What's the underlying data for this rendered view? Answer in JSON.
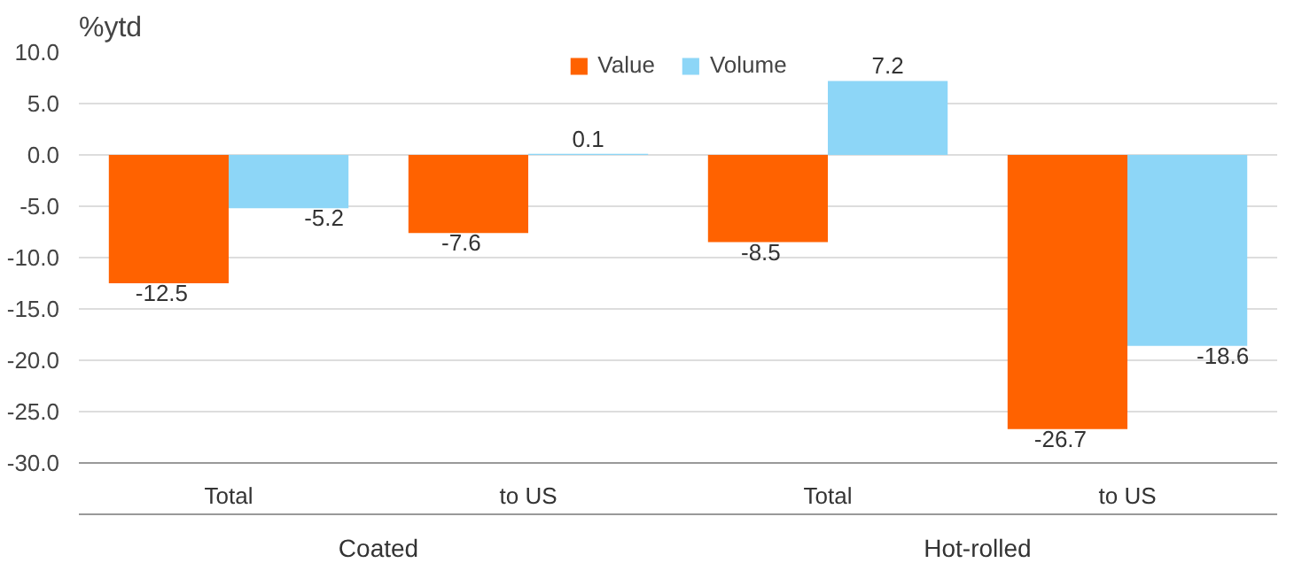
{
  "chart_data": {
    "type": "bar",
    "ylabel": "%ytd",
    "categories": [
      "Total",
      "to US",
      "Total",
      "to US"
    ],
    "annotations": [
      "Coated",
      "Hot-rolled"
    ],
    "series": [
      {
        "name": "Value",
        "color": "#ff6200",
        "values": [
          -12.5,
          -7.6,
          -8.5,
          -26.7
        ]
      },
      {
        "name": "Volume",
        "color": "#8dd6f7",
        "values": [
          -5.2,
          0.1,
          7.2,
          -18.6
        ]
      }
    ],
    "ylim": [
      -30,
      10
    ],
    "yticks": [
      {
        "value": 10,
        "label": "10.0"
      },
      {
        "value": 5,
        "label": "5.0"
      },
      {
        "value": 0,
        "label": "0.0"
      },
      {
        "value": -5,
        "label": "-5.0"
      },
      {
        "value": -10,
        "label": "-10.0"
      },
      {
        "value": -15,
        "label": "-15.0"
      },
      {
        "value": -20,
        "label": "-20.0"
      },
      {
        "value": -25,
        "label": "-25.0"
      },
      {
        "value": -30,
        "label": "-30.0"
      }
    ],
    "grid": "y",
    "legend": "top",
    "data_labels": true
  }
}
